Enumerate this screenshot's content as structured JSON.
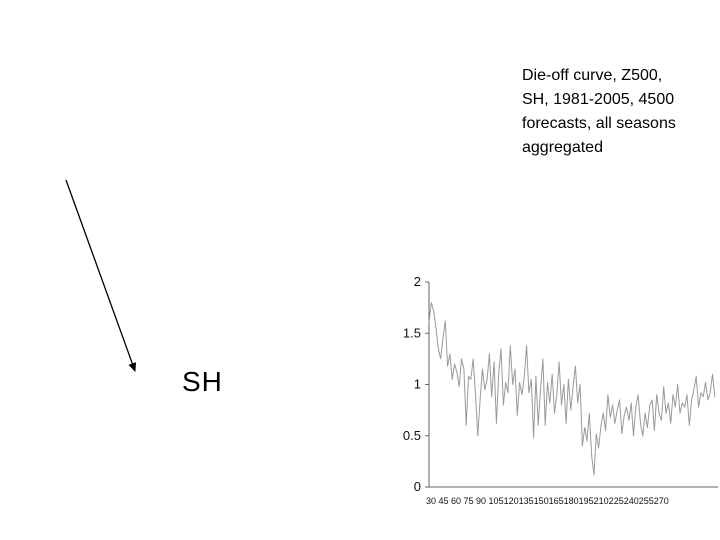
{
  "caption": {
    "text": "Die-off curve, Z500,\nSH, 1981-2005, 4500\nforecasts, all seasons\naggregated"
  },
  "region_label": "SH",
  "chart_data": {
    "type": "line",
    "title": "",
    "xlabel": "",
    "ylabel": "",
    "x_tick_text": "30 45 60 75 90 105120135150165180195210225240255270",
    "ylim": [
      0,
      2
    ],
    "xlim": [
      30,
      277
    ],
    "y_ticks": [
      "0",
      "0.5",
      "1",
      "1.5",
      "2"
    ],
    "grid": false,
    "legend": "none",
    "color": "#9a9a9a",
    "series": [
      {
        "x": [
          30,
          32,
          34,
          36,
          38,
          40,
          42,
          44,
          46,
          48,
          50,
          52,
          54,
          56,
          58,
          60,
          62,
          64,
          66,
          68,
          70,
          72,
          74,
          76,
          78,
          80,
          82,
          84,
          86,
          88,
          90,
          92,
          94,
          96,
          98,
          100,
          102,
          104,
          106,
          108,
          110,
          112,
          114,
          116,
          118,
          120,
          122,
          124,
          126,
          128,
          130,
          132,
          134,
          136,
          138,
          140,
          142,
          144,
          146,
          148,
          150,
          152,
          154,
          156,
          158,
          160,
          162,
          164,
          166,
          168,
          170,
          172,
          174,
          176,
          178,
          180,
          182,
          184,
          186,
          188,
          190,
          192,
          194,
          196,
          198,
          200,
          202,
          204,
          206,
          208,
          210,
          212,
          214,
          216,
          218,
          220,
          222,
          224,
          226,
          228,
          230,
          232,
          234,
          236,
          238,
          240,
          242,
          244,
          246,
          248,
          250,
          252,
          254,
          256,
          258,
          260,
          262,
          264,
          266,
          268,
          270,
          272,
          274,
          276
        ],
        "y": [
          1.6,
          1.8,
          1.72,
          1.55,
          1.35,
          1.25,
          1.45,
          1.62,
          1.18,
          1.3,
          1.05,
          1.2,
          1.12,
          0.98,
          1.25,
          1.15,
          0.6,
          1.08,
          1.05,
          1.25,
          0.9,
          0.5,
          0.85,
          1.15,
          0.95,
          1.05,
          1.3,
          0.88,
          1.22,
          0.62,
          1.1,
          1.35,
          0.8,
          1.02,
          0.92,
          1.38,
          1.0,
          1.15,
          0.7,
          1.02,
          0.9,
          1.08,
          1.38,
          0.92,
          1.05,
          0.48,
          1.08,
          0.6,
          0.95,
          1.25,
          0.6,
          1.02,
          0.82,
          1.1,
          0.72,
          0.9,
          1.22,
          0.8,
          1.0,
          0.62,
          1.05,
          0.75,
          0.98,
          1.18,
          0.82,
          1.0,
          0.4,
          0.58,
          0.45,
          0.72,
          0.3,
          0.12,
          0.52,
          0.38,
          0.6,
          0.72,
          0.55,
          0.9,
          0.68,
          0.8,
          0.62,
          0.75,
          0.85,
          0.52,
          0.7,
          0.78,
          0.65,
          0.82,
          0.5,
          0.78,
          0.9,
          0.62,
          0.5,
          0.72,
          0.58,
          0.8,
          0.85,
          0.55,
          0.9,
          0.72,
          0.65,
          0.98,
          0.72,
          0.82,
          0.62,
          0.9,
          0.78,
          1.0,
          0.72,
          0.82,
          0.78,
          0.9,
          0.6,
          0.85,
          0.95,
          1.08,
          0.78,
          0.92,
          0.88,
          1.02,
          0.85,
          0.92,
          1.1,
          0.88
        ]
      }
    ]
  }
}
